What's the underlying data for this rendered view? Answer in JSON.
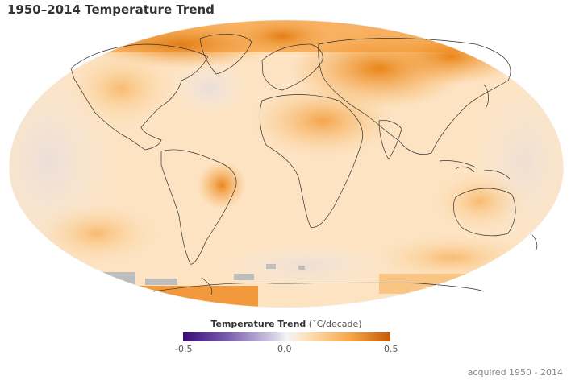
{
  "title": "1950–2014 Temperature Trend",
  "map": {
    "projection": "Robinson",
    "colors": {
      "warm_strong": "#e07a10",
      "warm_mid": "#f7a94a",
      "warm_light": "#fde0b8",
      "neutral": "#f4f4f6",
      "cool_light": "#dcd9ec",
      "no_data": "#bdbdbd",
      "coastline": "#333333"
    }
  },
  "legend": {
    "title": "Temperature Trend",
    "unit": "(˚C/decade)",
    "min_label": "-0.5",
    "mid_label": "0.0",
    "max_label": "0.5",
    "colors": [
      "#3b0a7a",
      "#7b5fb0",
      "#f4f4f6",
      "#f7a94a",
      "#c85a05"
    ]
  },
  "acquired": "acquired 1950 - 2014"
}
